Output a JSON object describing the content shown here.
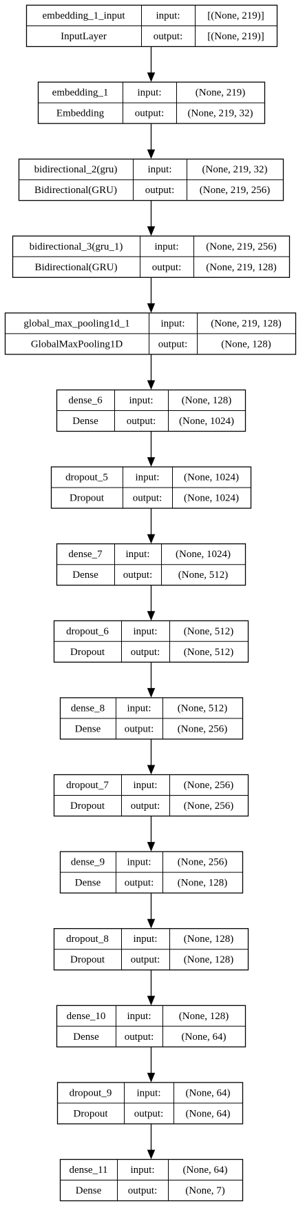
{
  "diagram": {
    "input_label": "input:",
    "output_label": "output:",
    "layers": [
      {
        "name": "embedding_1_input",
        "type": "InputLayer",
        "input": "[(None, 219)]",
        "output": "[(None, 219)]"
      },
      {
        "name": "embedding_1",
        "type": "Embedding",
        "input": "(None, 219)",
        "output": "(None, 219, 32)"
      },
      {
        "name": "bidirectional_2(gru)",
        "type": "Bidirectional(GRU)",
        "input": "(None, 219, 32)",
        "output": "(None, 219, 256)"
      },
      {
        "name": "bidirectional_3(gru_1)",
        "type": "Bidirectional(GRU)",
        "input": "(None, 219, 256)",
        "output": "(None, 219, 128)"
      },
      {
        "name": "global_max_pooling1d_1",
        "type": "GlobalMaxPooling1D",
        "input": "(None, 219, 128)",
        "output": "(None, 128)"
      },
      {
        "name": "dense_6",
        "type": "Dense",
        "input": "(None, 128)",
        "output": "(None, 1024)"
      },
      {
        "name": "dropout_5",
        "type": "Dropout",
        "input": "(None, 1024)",
        "output": "(None, 1024)"
      },
      {
        "name": "dense_7",
        "type": "Dense",
        "input": "(None, 1024)",
        "output": "(None, 512)"
      },
      {
        "name": "dropout_6",
        "type": "Dropout",
        "input": "(None, 512)",
        "output": "(None, 512)"
      },
      {
        "name": "dense_8",
        "type": "Dense",
        "input": "(None, 512)",
        "output": "(None, 256)"
      },
      {
        "name": "dropout_7",
        "type": "Dropout",
        "input": "(None, 256)",
        "output": "(None, 256)"
      },
      {
        "name": "dense_9",
        "type": "Dense",
        "input": "(None, 256)",
        "output": "(None, 128)"
      },
      {
        "name": "dropout_8",
        "type": "Dropout",
        "input": "(None, 128)",
        "output": "(None, 128)"
      },
      {
        "name": "dense_10",
        "type": "Dense",
        "input": "(None, 128)",
        "output": "(None, 64)"
      },
      {
        "name": "dropout_9",
        "type": "Dropout",
        "input": "(None, 64)",
        "output": "(None, 64)"
      },
      {
        "name": "dense_11",
        "type": "Dense",
        "input": "(None, 64)",
        "output": "(None, 7)"
      }
    ]
  }
}
